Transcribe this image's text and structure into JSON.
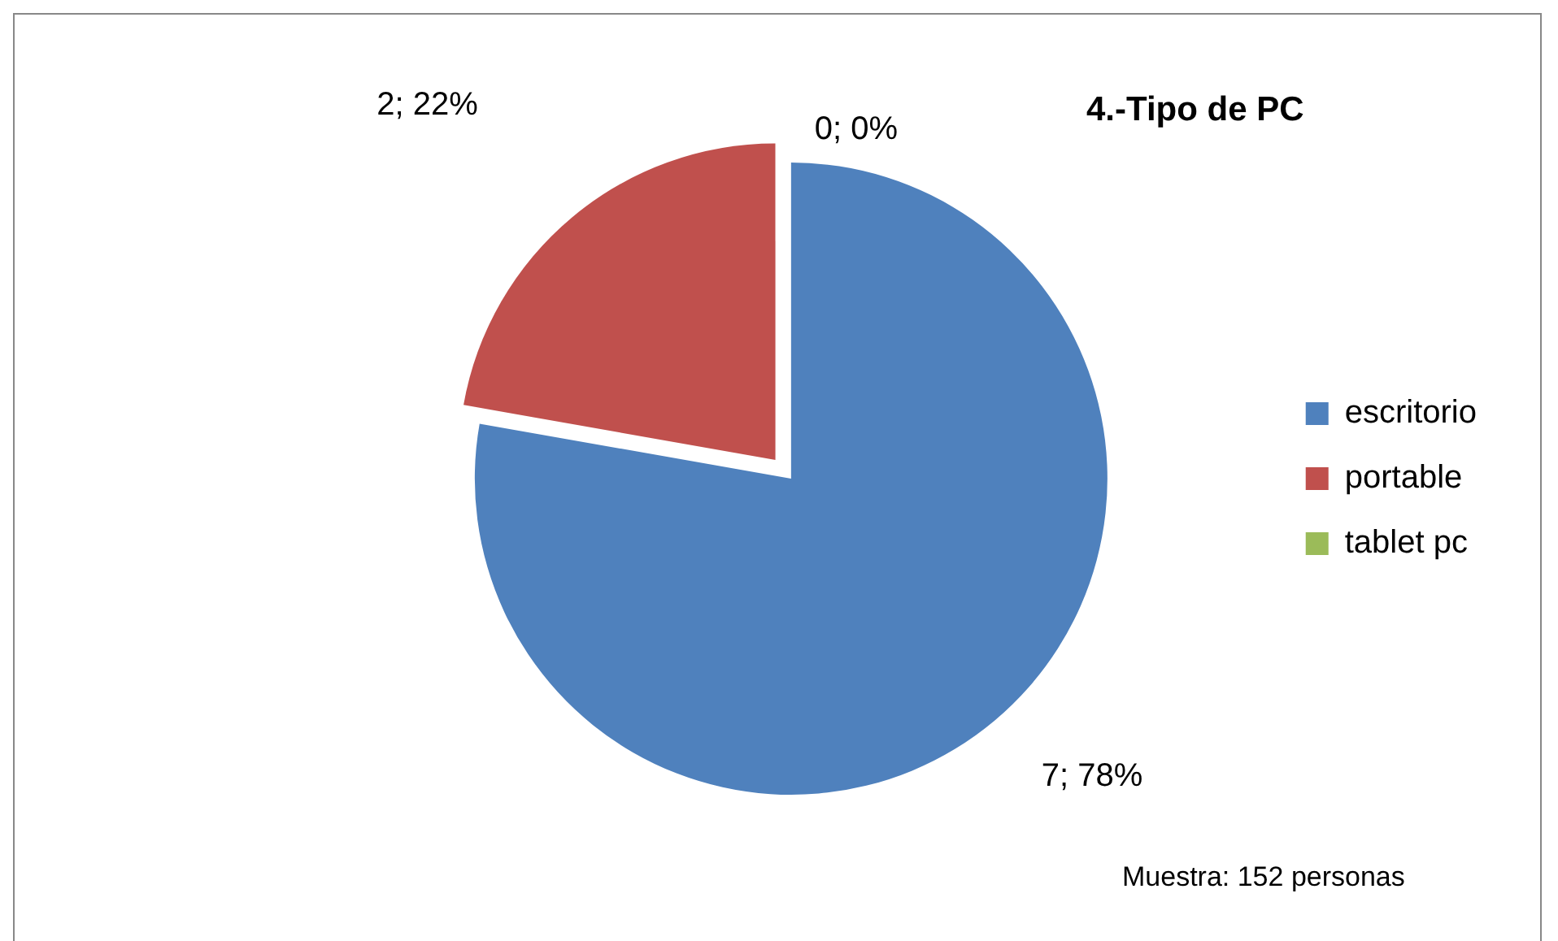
{
  "chart_data": {
    "type": "pie",
    "title": "4.-Tipo de PC",
    "categories": [
      "escritorio",
      "portable",
      "tablet pc"
    ],
    "values": [
      7,
      2,
      0
    ],
    "colors": [
      "#4f81bd",
      "#c0504d",
      "#9bbb59"
    ],
    "value_labels": [
      "7; 78%",
      "2; 22%",
      "0; 0%"
    ],
    "legend": "right",
    "annotations": [
      "Muestra: 152 personas"
    ]
  }
}
